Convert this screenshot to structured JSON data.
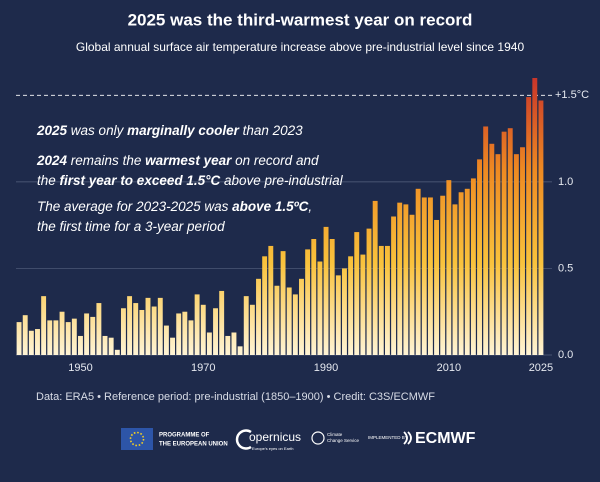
{
  "chart_data": {
    "type": "bar",
    "title": "2025 was the third-warmest year on record",
    "subtitle": "Global annual surface air temperature increase above pre-industrial level since 1940",
    "x": [
      1940,
      1941,
      1942,
      1943,
      1944,
      1945,
      1946,
      1947,
      1948,
      1949,
      1950,
      1951,
      1952,
      1953,
      1954,
      1955,
      1956,
      1957,
      1958,
      1959,
      1960,
      1961,
      1962,
      1963,
      1964,
      1965,
      1966,
      1967,
      1968,
      1969,
      1970,
      1971,
      1972,
      1973,
      1974,
      1975,
      1976,
      1977,
      1978,
      1979,
      1980,
      1981,
      1982,
      1983,
      1984,
      1985,
      1986,
      1987,
      1988,
      1989,
      1990,
      1991,
      1992,
      1993,
      1994,
      1995,
      1996,
      1997,
      1998,
      1999,
      2000,
      2001,
      2002,
      2003,
      2004,
      2005,
      2006,
      2007,
      2008,
      2009,
      2010,
      2011,
      2012,
      2013,
      2014,
      2015,
      2016,
      2017,
      2018,
      2019,
      2020,
      2021,
      2022,
      2023,
      2024,
      2025
    ],
    "values": [
      0.19,
      0.23,
      0.14,
      0.15,
      0.34,
      0.2,
      0.2,
      0.25,
      0.19,
      0.21,
      0.11,
      0.24,
      0.22,
      0.3,
      0.11,
      0.1,
      0.03,
      0.27,
      0.34,
      0.3,
      0.26,
      0.33,
      0.28,
      0.33,
      0.17,
      0.1,
      0.24,
      0.25,
      0.2,
      0.35,
      0.29,
      0.13,
      0.27,
      0.37,
      0.11,
      0.13,
      0.05,
      0.34,
      0.29,
      0.44,
      0.57,
      0.63,
      0.4,
      0.6,
      0.39,
      0.35,
      0.44,
      0.61,
      0.67,
      0.54,
      0.74,
      0.67,
      0.46,
      0.5,
      0.57,
      0.71,
      0.58,
      0.73,
      0.89,
      0.63,
      0.63,
      0.8,
      0.88,
      0.87,
      0.81,
      0.96,
      0.91,
      0.91,
      0.78,
      0.92,
      1.01,
      0.87,
      0.94,
      0.96,
      1.02,
      1.13,
      1.32,
      1.22,
      1.16,
      1.29,
      1.31,
      1.16,
      1.2,
      1.49,
      1.6,
      1.47
    ],
    "colors": [
      "#fff4d6",
      "#f9c23c",
      "#ee8a22",
      "#c8352a"
    ],
    "xlim": [
      1939.5,
      2025.5
    ],
    "xticks": [
      1950,
      1970,
      1990,
      2010,
      2025
    ],
    "ylim": [
      0,
      1.6
    ],
    "yticks": [
      {
        "value": 0,
        "label": "0.0"
      },
      0.5,
      {
        "value": 1,
        "label": "1.0"
      },
      {
        "value": 1.5,
        "label": "+1.5°C"
      }
    ],
    "grid": true,
    "annotations": [
      [
        {
          "text": "2025",
          "bold": true
        },
        {
          "text": " was only ",
          "bold": false
        },
        {
          "text": "marginally cooler",
          "bold": true
        },
        {
          "text": " than 2023",
          "bold": false
        }
      ],
      [
        {
          "text": "2024",
          "bold": true
        },
        {
          "text": " remains the ",
          "bold": false
        },
        {
          "text": "warmest year",
          "bold": true
        },
        {
          "text": " on record and",
          "bold": false
        }
      ],
      [
        {
          "text": "the ",
          "bold": false
        },
        {
          "text": "first year to exceed 1.5°C",
          "bold": true
        },
        {
          "text": " above pre-industrial",
          "bold": false
        }
      ],
      [
        {
          "text": "The average for 2023-2025 was ",
          "bold": false
        },
        {
          "text": "above 1.5ºC",
          "bold": true
        },
        {
          "text": ",",
          "bold": false
        }
      ],
      [
        {
          "text": "the first time for a 3-year period",
          "bold": false
        }
      ]
    ],
    "source": "Data: ERA5 • Reference period: pre-industrial (1850–1900) • Credit: C3S/ECMWF"
  },
  "logos": {
    "eu": [
      "PROGRAMME OF",
      "THE EUROPEAN UNION"
    ],
    "copernicus": "opernicus",
    "copernicus_tagline": "Europe's eyes on Earth",
    "service": [
      "Climate",
      "Change Service"
    ],
    "implemented": "IMPLEMENTED BY",
    "ecmwf": "ECMWF"
  }
}
